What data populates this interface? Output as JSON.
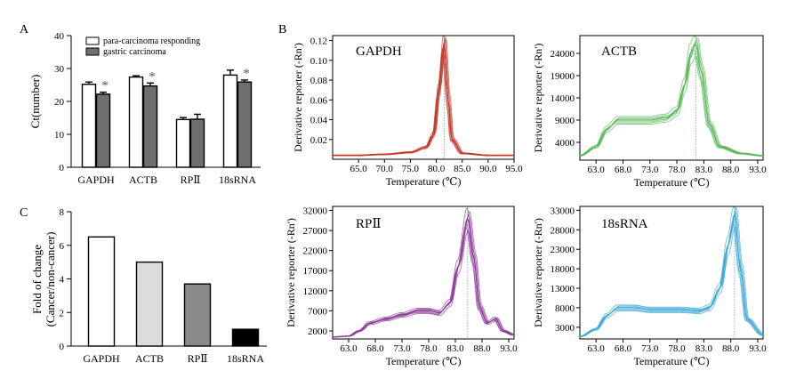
{
  "panels": {
    "A": "A",
    "B": "B",
    "C": "C"
  },
  "chart_data": [
    {
      "panel": "A",
      "type": "bar",
      "categories": [
        "GAPDH",
        "ACTB",
        "RPⅡ",
        "18sRNA"
      ],
      "ylabel": "Ct(number)",
      "ylim": [
        0,
        40
      ],
      "yticks": [
        "0",
        "10",
        "20",
        "30",
        "40"
      ],
      "series": [
        {
          "name": "para-carcinoma responding",
          "values": [
            25.2,
            27.4,
            14.5,
            28.0
          ],
          "errors": [
            0.7,
            0.4,
            0.6,
            1.5
          ],
          "color": "#ffffff"
        },
        {
          "name": "gastric carcinoma",
          "values": [
            22.2,
            24.7,
            14.6,
            25.9
          ],
          "errors": [
            0.6,
            0.9,
            1.5,
            0.6
          ],
          "color": "#6f6f6f"
        }
      ],
      "annotation": "*",
      "annotated_categories": [
        0,
        1,
        3
      ]
    },
    {
      "panel": "C",
      "type": "bar",
      "categories": [
        "GAPDH",
        "ACTB",
        "RPⅡ",
        "18sRNA"
      ],
      "ylabel_line1": "Fold of change",
      "ylabel_line2": "(Cancer/non-cancer)",
      "ylim": [
        0,
        8
      ],
      "yticks": [
        "0",
        "2",
        "4",
        "6",
        "8"
      ],
      "values": [
        6.5,
        5.0,
        3.7,
        1.0
      ],
      "colors": [
        "#ffffff",
        "#dcdcdc",
        "#8a8a8a",
        "#000000"
      ]
    },
    {
      "panel": "B",
      "type": "line",
      "title": "GAPDH",
      "xlabel": "Temperature (℃)",
      "ylabel": "Derivative reporter (-Rn')",
      "color": "#c0392b",
      "xlim": [
        60,
        95
      ],
      "ylim": [
        0,
        0.125
      ],
      "xticks": [
        "65.0",
        "70.0",
        "75.0",
        "80.0",
        "85.0",
        "90.0",
        "95.0"
      ],
      "yticks": [
        "0.02",
        "0.04",
        "0.06",
        "0.08",
        "0.10",
        "0.12"
      ],
      "peak_x": 81.5,
      "x": [
        60,
        65,
        70,
        75,
        78,
        79.5,
        80.5,
        81.5,
        82.3,
        83,
        85,
        90,
        95
      ],
      "y": [
        0.004,
        0.004,
        0.005,
        0.007,
        0.012,
        0.025,
        0.07,
        0.118,
        0.06,
        0.02,
        0.006,
        0.004,
        0.004
      ]
    },
    {
      "panel": "B",
      "type": "line",
      "title": "ACTB",
      "xlabel": "Temperature (℃)",
      "ylabel": "Derivative reporter (-Rn')",
      "color": "#5cb85c",
      "xlim": [
        60,
        94
      ],
      "ylim": [
        0,
        28000
      ],
      "xticks": [
        "63.0",
        "68.0",
        "73.0",
        "78.0",
        "83.0",
        "88.0",
        "93.0"
      ],
      "yticks": [
        "4000",
        "9000",
        "14000",
        "19000",
        "24000"
      ],
      "peak_x": 81.5,
      "x": [
        60,
        63,
        65,
        67,
        70,
        73,
        76,
        78,
        79.5,
        80.5,
        81.5,
        82.5,
        84,
        86,
        90,
        94
      ],
      "y": [
        1000,
        3000,
        7000,
        9000,
        9000,
        9000,
        9500,
        11000,
        17000,
        24000,
        26000,
        20000,
        8000,
        3000,
        1500,
        1000
      ]
    },
    {
      "panel": "B",
      "type": "line",
      "title": "RPⅡ",
      "xlabel": "Temperature (℃)",
      "ylabel": "Derivative reporter (-Rn')",
      "color": "#8e3c9a",
      "xlim": [
        60,
        94
      ],
      "ylim": [
        0,
        33000
      ],
      "xticks": [
        "63.0",
        "68.0",
        "73.0",
        "78.0",
        "83.0",
        "88.0",
        "93.0"
      ],
      "yticks": [
        "2000",
        "7000",
        "12000",
        "17000",
        "22000",
        "27000",
        "32000"
      ],
      "peak_x": 85.3,
      "x": [
        60,
        63,
        65,
        67,
        70,
        73,
        76,
        78,
        80,
        82,
        83.5,
        85.3,
        86.5,
        87.5,
        89,
        90.5,
        92,
        94
      ],
      "y": [
        500,
        700,
        2000,
        4000,
        5000,
        6000,
        7000,
        7000,
        6500,
        9000,
        18000,
        30000,
        20000,
        8000,
        4000,
        5000,
        2000,
        1000
      ]
    },
    {
      "panel": "B",
      "type": "line",
      "title": "18sRNA",
      "xlabel": "Temperature (℃)",
      "ylabel": "Derivative reporter (-Rn')",
      "color": "#3fa9d6",
      "xlim": [
        60,
        94
      ],
      "ylim": [
        0,
        34000
      ],
      "xticks": [
        "63.0",
        "68.0",
        "73.0",
        "78.0",
        "83.0",
        "88.0",
        "93.0"
      ],
      "yticks": [
        "3000",
        "8000",
        "13000",
        "18000",
        "23000",
        "28000",
        "33000"
      ],
      "peak_x": 88.7,
      "x": [
        60,
        63,
        65,
        67,
        70,
        73,
        76,
        79,
        82,
        84,
        86,
        87.5,
        88.7,
        89.8,
        91,
        94
      ],
      "y": [
        600,
        2500,
        6000,
        8000,
        8000,
        7500,
        7500,
        7500,
        7200,
        8000,
        13000,
        24000,
        32000,
        18000,
        5000,
        1000
      ]
    }
  ]
}
